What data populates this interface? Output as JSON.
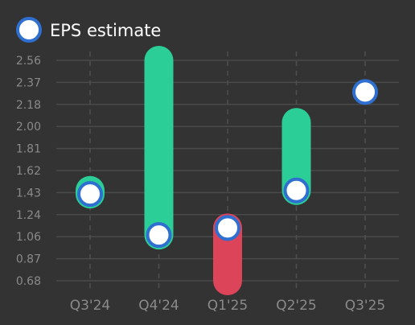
{
  "legend": {
    "label": "EPS estimate"
  },
  "colors": {
    "background": "#333333",
    "grid": "#4a4a4a",
    "tick_text": "#8a8a8a",
    "legend_text": "#ffffff",
    "beat": "#2bce96",
    "miss": "#dc4459",
    "marker_fill": "#ffffff",
    "marker_stroke": "#2e6fd0"
  },
  "chart_data": {
    "type": "bar",
    "categories": [
      "Q3'24",
      "Q4'24",
      "Q1'25",
      "Q2'25",
      "Q3'25"
    ],
    "series": [
      {
        "name": "EPS estimate",
        "values": [
          1.42,
          1.07,
          1.13,
          1.45,
          2.29
        ]
      }
    ],
    "actual_values": [
      1.45,
      2.56,
      0.68,
      2.03,
      null
    ],
    "yticks": [
      "0.68",
      "0.87",
      "1.06",
      "1.24",
      "1.43",
      "1.62",
      "1.81",
      "2.00",
      "2.18",
      "2.37",
      "2.56"
    ],
    "ylim": [
      0.68,
      2.56
    ],
    "legend_position": "top-left",
    "grid": true
  }
}
